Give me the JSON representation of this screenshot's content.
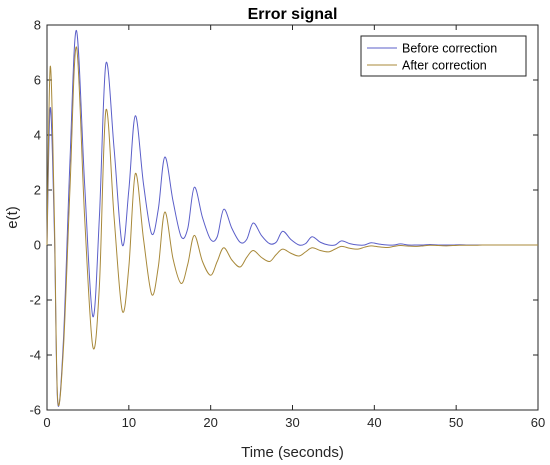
{
  "chart_data": {
    "type": "line",
    "title": "Error signal",
    "xlabel": "Time (seconds)",
    "ylabel": "e(t)",
    "xlim": [
      0,
      60
    ],
    "ylim": [
      -6,
      8
    ],
    "xticks": [
      "0",
      "10",
      "20",
      "30",
      "40",
      "50",
      "60"
    ],
    "yticks": [
      "-6",
      "-4",
      "-2",
      "0",
      "2",
      "4",
      "6",
      "8"
    ],
    "grid": false,
    "legend_position": "top-right",
    "x": [
      0,
      0.4,
      0.9,
      1.3,
      2.0,
      2.8,
      3.6,
      4.6,
      5.6,
      6.4,
      7.2,
      8.2,
      9.2,
      10.0,
      10.8,
      11.8,
      12.8,
      13.6,
      14.4,
      15.4,
      16.4,
      17.2,
      18.0,
      19.0,
      20.0,
      20.8,
      21.6,
      22.6,
      23.6,
      24.4,
      25.2,
      26.2,
      27.2,
      28.0,
      28.8,
      29.8,
      30.8,
      31.6,
      32.4,
      33.4,
      34.4,
      35.2,
      36.0,
      37.0,
      38.0,
      38.8,
      39.6,
      40.6,
      41.6,
      42.4,
      43.2,
      44.2,
      45.2,
      46.0,
      46.8,
      47.8,
      48.8,
      49.6,
      50.4,
      51.4,
      52.4,
      53.2,
      54.0,
      55.0,
      56.0,
      56.8,
      57.6,
      58.6,
      60
    ],
    "series": [
      {
        "name": "Before correction",
        "color": "#5b5fc9",
        "values": [
          0,
          5.0,
          0.5,
          -5.7,
          -3.5,
          3.0,
          7.8,
          2.2,
          -2.6,
          1.0,
          6.6,
          3.5,
          0.0,
          2.0,
          4.7,
          2.2,
          0.4,
          1.3,
          3.2,
          1.6,
          0.3,
          0.6,
          2.1,
          1.0,
          0.2,
          0.3,
          1.3,
          0.6,
          0.1,
          0.2,
          0.8,
          0.35,
          0.05,
          0.1,
          0.5,
          0.2,
          0.0,
          0.05,
          0.3,
          0.1,
          0.0,
          0.0,
          0.15,
          0.05,
          0.0,
          0.0,
          0.08,
          0.03,
          0.0,
          0.0,
          0.04,
          0.0,
          0.0,
          0.0,
          0.02,
          0.0,
          0.0,
          0.0,
          0.01,
          0.0,
          0.0,
          0.0,
          0.0,
          0.0,
          0.0,
          0.0,
          0.0,
          0.0,
          0.0
        ]
      },
      {
        "name": "After correction",
        "color": "#a8893a",
        "values": [
          0,
          6.5,
          1.0,
          -5.6,
          -3.8,
          2.0,
          7.2,
          1.0,
          -3.7,
          -1.5,
          4.9,
          1.0,
          -2.4,
          -0.8,
          2.6,
          0.2,
          -1.8,
          -0.8,
          1.2,
          -0.5,
          -1.4,
          -0.7,
          0.35,
          -0.6,
          -1.1,
          -0.6,
          -0.1,
          -0.55,
          -0.8,
          -0.45,
          -0.2,
          -0.45,
          -0.6,
          -0.35,
          -0.15,
          -0.3,
          -0.4,
          -0.25,
          -0.1,
          -0.2,
          -0.25,
          -0.15,
          -0.05,
          -0.12,
          -0.15,
          -0.08,
          -0.03,
          -0.07,
          -0.09,
          -0.05,
          -0.02,
          -0.04,
          -0.05,
          -0.03,
          -0.01,
          -0.02,
          -0.03,
          -0.02,
          -0.01,
          -0.01,
          -0.01,
          0.0,
          0.0,
          0.0,
          0.0,
          0.0,
          0.0,
          0.0,
          0.0
        ]
      }
    ]
  }
}
